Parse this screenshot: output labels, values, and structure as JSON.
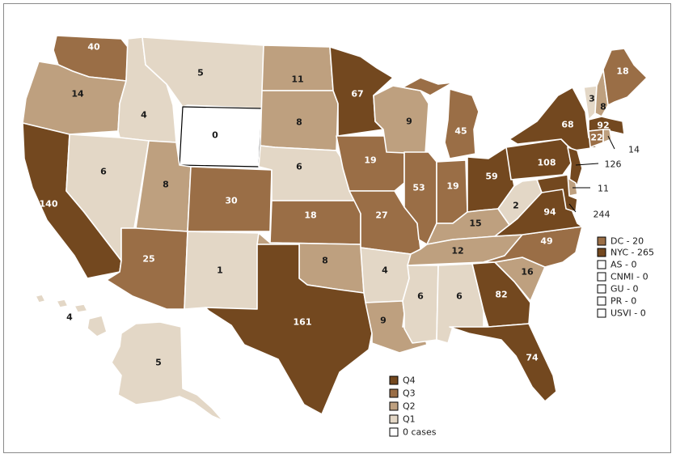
{
  "colors": {
    "Q4": "#73481f",
    "Q3": "#9a6e46",
    "Q2": "#bea07f",
    "Q1": "#e3d7c6",
    "zero": "#ffffff"
  },
  "legend": {
    "items": [
      {
        "key": "Q4",
        "label": "Q4"
      },
      {
        "key": "Q3",
        "label": "Q3"
      },
      {
        "key": "Q2",
        "label": "Q2"
      },
      {
        "key": "Q1",
        "label": "Q1"
      },
      {
        "key": "zero",
        "label": "0 cases"
      }
    ]
  },
  "territories": [
    {
      "key": "Q3",
      "label": "DC - 20"
    },
    {
      "key": "Q4",
      "label": "NYC - 265"
    },
    {
      "key": "zero",
      "label": "AS - 0"
    },
    {
      "key": "zero",
      "label": "CNMI - 0"
    },
    {
      "key": "zero",
      "label": "GU - 0"
    },
    {
      "key": "zero",
      "label": "PR - 0"
    },
    {
      "key": "zero",
      "label": "USVI - 0"
    }
  ],
  "states": {
    "WA": {
      "value": "40",
      "q": "Q3"
    },
    "OR": {
      "value": "14",
      "q": "Q2"
    },
    "CA": {
      "value": "140",
      "q": "Q4"
    },
    "ID": {
      "value": "4",
      "q": "Q1"
    },
    "NV": {
      "value": "6",
      "q": "Q1"
    },
    "MT": {
      "value": "5",
      "q": "Q1"
    },
    "WY": {
      "value": "0",
      "q": "zero"
    },
    "UT": {
      "value": "8",
      "q": "Q2"
    },
    "AZ": {
      "value": "25",
      "q": "Q3"
    },
    "CO": {
      "value": "30",
      "q": "Q3"
    },
    "NM": {
      "value": "1",
      "q": "Q1"
    },
    "ND": {
      "value": "11",
      "q": "Q2"
    },
    "SD": {
      "value": "8",
      "q": "Q2"
    },
    "NE": {
      "value": "6",
      "q": "Q1"
    },
    "KS": {
      "value": "18",
      "q": "Q3"
    },
    "OK": {
      "value": "8",
      "q": "Q2"
    },
    "TX": {
      "value": "161",
      "q": "Q4"
    },
    "MN": {
      "value": "67",
      "q": "Q4"
    },
    "IA": {
      "value": "19",
      "q": "Q3"
    },
    "MO": {
      "value": "27",
      "q": "Q3"
    },
    "AR": {
      "value": "4",
      "q": "Q1"
    },
    "LA": {
      "value": "9",
      "q": "Q2"
    },
    "WI": {
      "value": "9",
      "q": "Q2"
    },
    "IL": {
      "value": "53",
      "q": "Q3"
    },
    "MI": {
      "value": "45",
      "q": "Q3"
    },
    "IN": {
      "value": "19",
      "q": "Q3"
    },
    "OH": {
      "value": "59",
      "q": "Q4"
    },
    "KY": {
      "value": "15",
      "q": "Q2"
    },
    "TN": {
      "value": "12",
      "q": "Q2"
    },
    "MS": {
      "value": "6",
      "q": "Q1"
    },
    "AL": {
      "value": "6",
      "q": "Q1"
    },
    "GA": {
      "value": "82",
      "q": "Q4"
    },
    "FL": {
      "value": "74",
      "q": "Q4"
    },
    "SC": {
      "value": "16",
      "q": "Q2"
    },
    "NC": {
      "value": "49",
      "q": "Q3"
    },
    "VA": {
      "value": "94",
      "q": "Q4"
    },
    "WV": {
      "value": "2",
      "q": "Q1"
    },
    "PA": {
      "value": "108",
      "q": "Q4"
    },
    "NY": {
      "value": "68",
      "q": "Q4"
    },
    "VT": {
      "value": "3",
      "q": "Q1"
    },
    "NH": {
      "value": "8",
      "q": "Q2"
    },
    "ME": {
      "value": "18",
      "q": "Q3"
    },
    "MA": {
      "value": "92",
      "q": "Q4"
    },
    "CT": {
      "value": "22",
      "q": "Q3"
    },
    "RI": {
      "value": "14",
      "q": "Q2"
    },
    "NJ": {
      "value": "126",
      "q": "Q4"
    },
    "DE": {
      "value": "11",
      "q": "Q2"
    },
    "MD": {
      "value": "244",
      "q": "Q4"
    },
    "AK": {
      "value": "5",
      "q": "Q1"
    },
    "HI": {
      "value": "4",
      "q": "Q1"
    }
  }
}
